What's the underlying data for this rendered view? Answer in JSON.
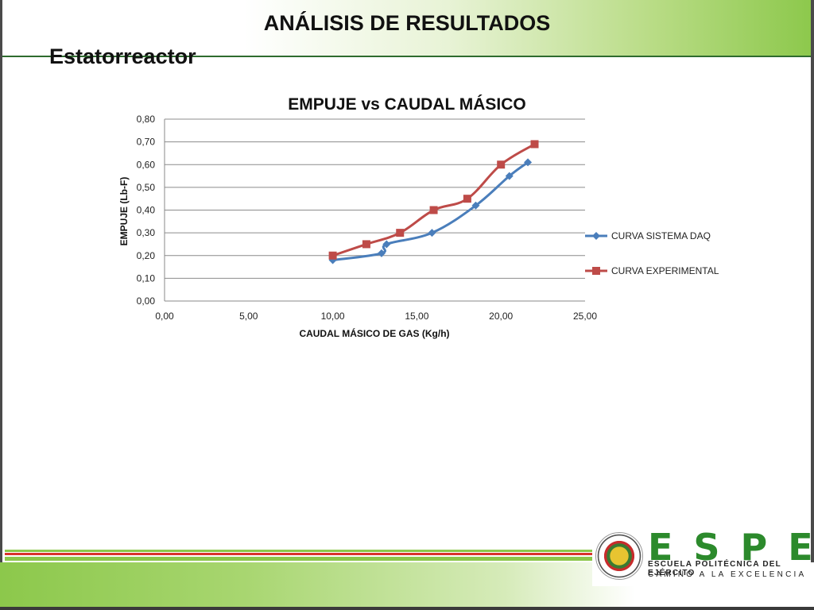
{
  "slide": {
    "title": "ANÁLISIS DE RESULTADOS",
    "subtitle": "Estatorreactor"
  },
  "logo": {
    "letters": "ESPE",
    "line1": "ESCUELA POLITÉCNICA DEL EJÉRCITO",
    "line2": "CAMINO A LA EXCELENCIA"
  },
  "colors": {
    "series_daq": "#4a7ebb",
    "series_exp": "#be4b48",
    "brand_green": "#8cc84b",
    "stripe_red": "#d9342b"
  },
  "chart_data": {
    "type": "line",
    "title": "EMPUJE vs CAUDAL MÁSICO",
    "xlabel": "CAUDAL MÁSICO DE GAS (Kg/h)",
    "ylabel": "EMPUJE (Lb-F)",
    "xlim": [
      0,
      25
    ],
    "ylim": [
      0,
      0.8
    ],
    "xticks": [
      "0,00",
      "5,00",
      "10,00",
      "15,00",
      "20,00",
      "25,00"
    ],
    "yticks": [
      "0,00",
      "0,10",
      "0,20",
      "0,30",
      "0,40",
      "0,50",
      "0,60",
      "0,70",
      "0,80"
    ],
    "grid": "horizontal",
    "legend_position": "right",
    "series": [
      {
        "name": "CURVA SISTEMA DAQ",
        "marker": "diamond",
        "x": [
          10.0,
          12.9,
          13.2,
          15.9,
          18.5,
          20.5,
          21.6
        ],
        "y": [
          0.18,
          0.21,
          0.25,
          0.3,
          0.42,
          0.55,
          0.61
        ]
      },
      {
        "name": "CURVA EXPERIMENTAL",
        "marker": "square",
        "x": [
          10.0,
          12.0,
          14.0,
          16.0,
          18.0,
          20.0,
          22.0
        ],
        "y": [
          0.2,
          0.25,
          0.3,
          0.4,
          0.45,
          0.6,
          0.69
        ]
      }
    ]
  }
}
